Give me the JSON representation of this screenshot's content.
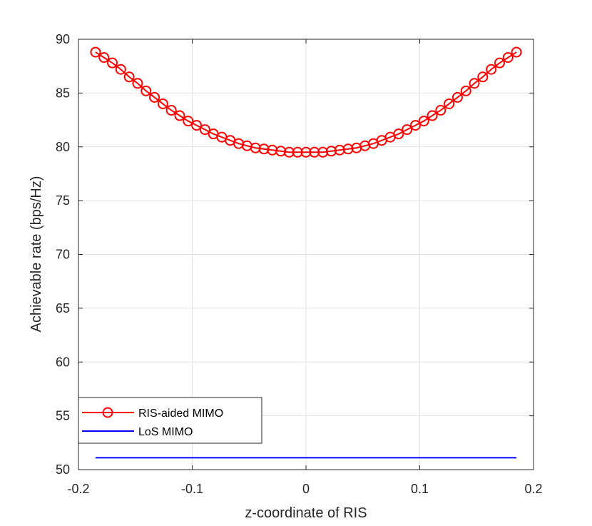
{
  "chart_data": {
    "type": "line",
    "title": "",
    "xlabel": "z-coordinate of RIS",
    "ylabel": "Achievable rate (bps/Hz)",
    "xlim": [
      -0.2,
      0.2
    ],
    "ylim": [
      50,
      90
    ],
    "xticks": [
      -0.2,
      -0.1,
      0,
      0.1,
      0.2
    ],
    "xtick_labels": [
      "-0.2",
      "-0.1",
      "0",
      "0.1",
      "0.2"
    ],
    "yticks": [
      50,
      55,
      60,
      65,
      70,
      75,
      80,
      85,
      90
    ],
    "ytick_labels": [
      "50",
      "55",
      "60",
      "65",
      "70",
      "75",
      "80",
      "85",
      "90"
    ],
    "grid": true,
    "legend_position": "bottom-left",
    "series": [
      {
        "name": "RIS-aided MIMO",
        "color": "#ff0000",
        "marker": "circle",
        "x": [
          -0.185,
          -0.1776,
          -0.1702,
          -0.1628,
          -0.1554,
          -0.148,
          -0.1406,
          -0.1332,
          -0.1258,
          -0.1184,
          -0.111,
          -0.1036,
          -0.0962,
          -0.0888,
          -0.0814,
          -0.074,
          -0.0666,
          -0.0592,
          -0.0518,
          -0.0444,
          -0.037,
          -0.0296,
          -0.0222,
          -0.0148,
          -0.0074,
          0.0,
          0.0074,
          0.0148,
          0.0222,
          0.0296,
          0.037,
          0.0444,
          0.0518,
          0.0592,
          0.0666,
          0.074,
          0.0814,
          0.0888,
          0.0962,
          0.1036,
          0.111,
          0.1184,
          0.1258,
          0.1332,
          0.1406,
          0.148,
          0.1554,
          0.1628,
          0.1702,
          0.1776,
          0.185
        ],
        "values": [
          88.8,
          88.3,
          87.8,
          87.2,
          86.5,
          85.9,
          85.2,
          84.6,
          84.0,
          83.4,
          82.9,
          82.4,
          82.0,
          81.6,
          81.2,
          80.9,
          80.6,
          80.3,
          80.1,
          79.9,
          79.8,
          79.7,
          79.6,
          79.5,
          79.5,
          79.5,
          79.5,
          79.5,
          79.6,
          79.7,
          79.8,
          79.9,
          80.1,
          80.3,
          80.6,
          80.9,
          81.2,
          81.6,
          82.0,
          82.4,
          82.9,
          83.4,
          84.0,
          84.6,
          85.2,
          85.9,
          86.5,
          87.2,
          87.8,
          88.3,
          88.8
        ]
      },
      {
        "name": "LoS MIMO",
        "color": "#0000ff",
        "marker": "none",
        "x": [
          -0.185,
          0.185
        ],
        "values": [
          51.1,
          51.1
        ]
      }
    ]
  }
}
